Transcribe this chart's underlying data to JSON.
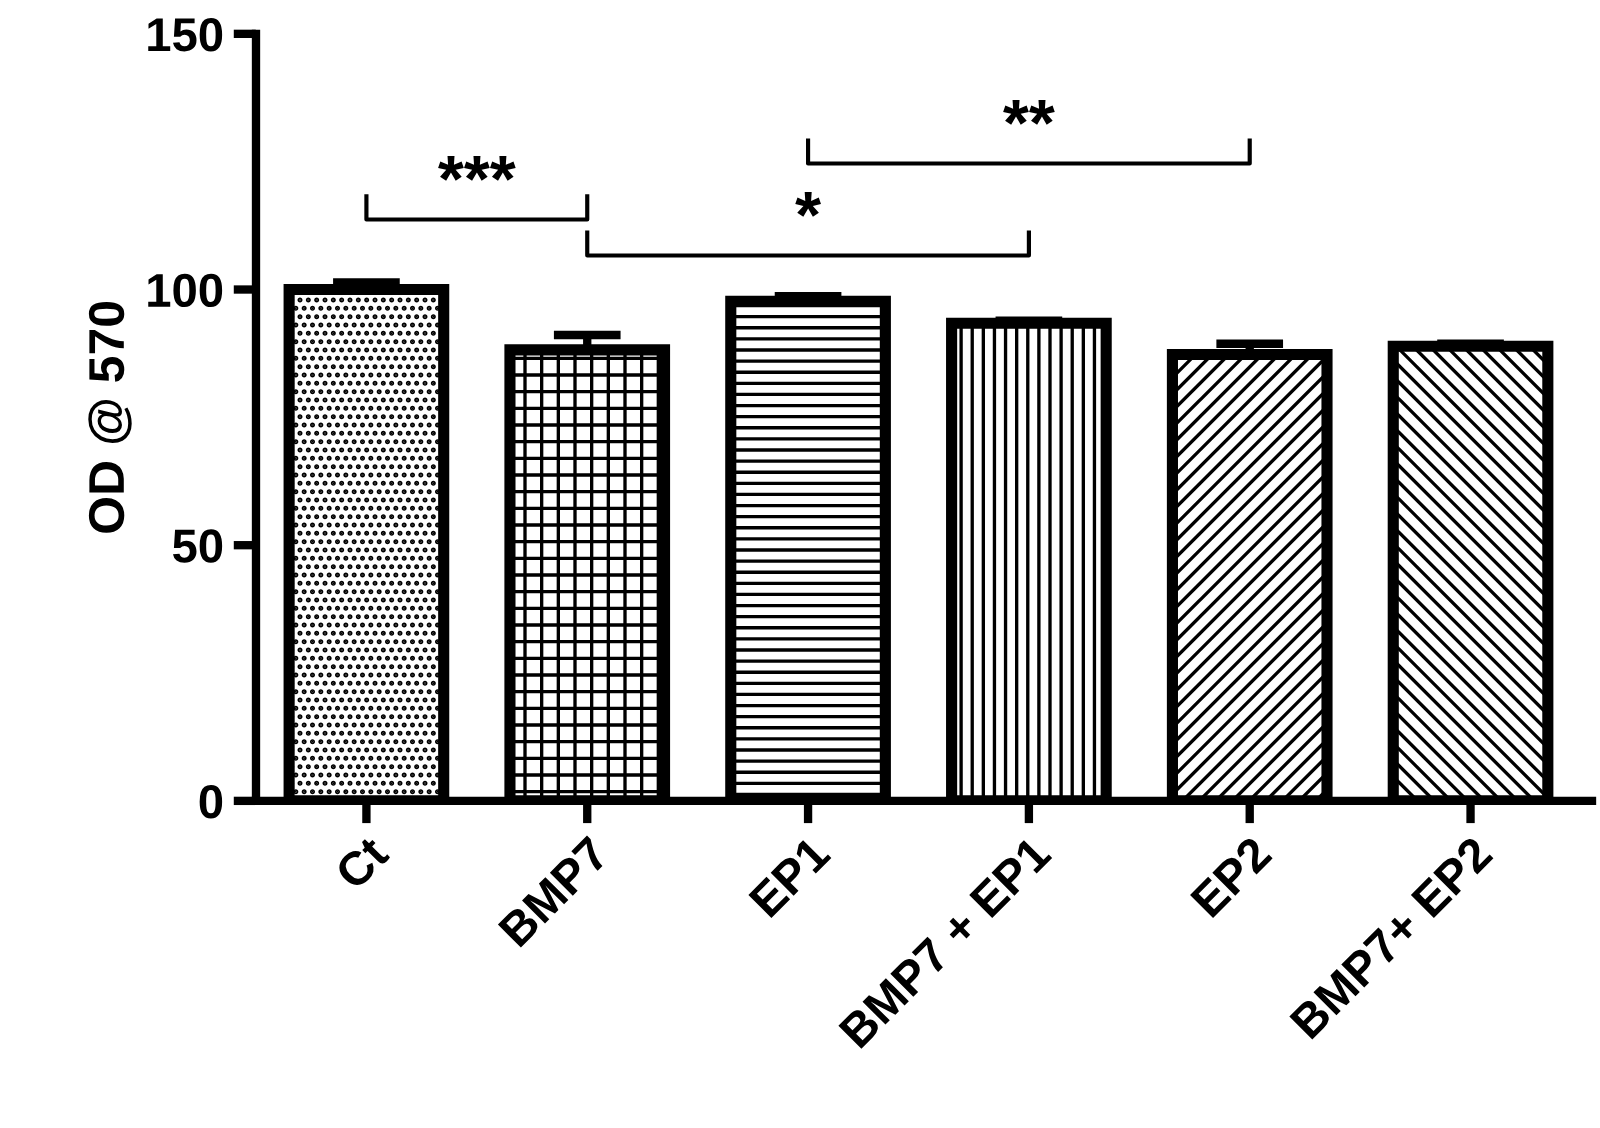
{
  "chart_data": {
    "type": "bar",
    "ylabel": "OD @ 570",
    "categories": [
      "Ct",
      "BMP7",
      "EP1",
      "BMP7 + EP1",
      "EP2",
      "BMP7+ EP2"
    ],
    "values": [
      100,
      88.2,
      97.7,
      93.4,
      87.3,
      88.9
    ],
    "errors": [
      1.4,
      2.9,
      1.0,
      0.5,
      2.1,
      0.5
    ],
    "colors": [
      "#000000",
      "#000000",
      "#000000",
      "#000000",
      "#000000",
      "#000000"
    ],
    "ylim": [
      0,
      150
    ],
    "yticks": [
      0,
      50,
      100,
      150
    ],
    "grid": false,
    "legend": false,
    "annotations": [
      "***",
      "*",
      "**"
    ]
  }
}
